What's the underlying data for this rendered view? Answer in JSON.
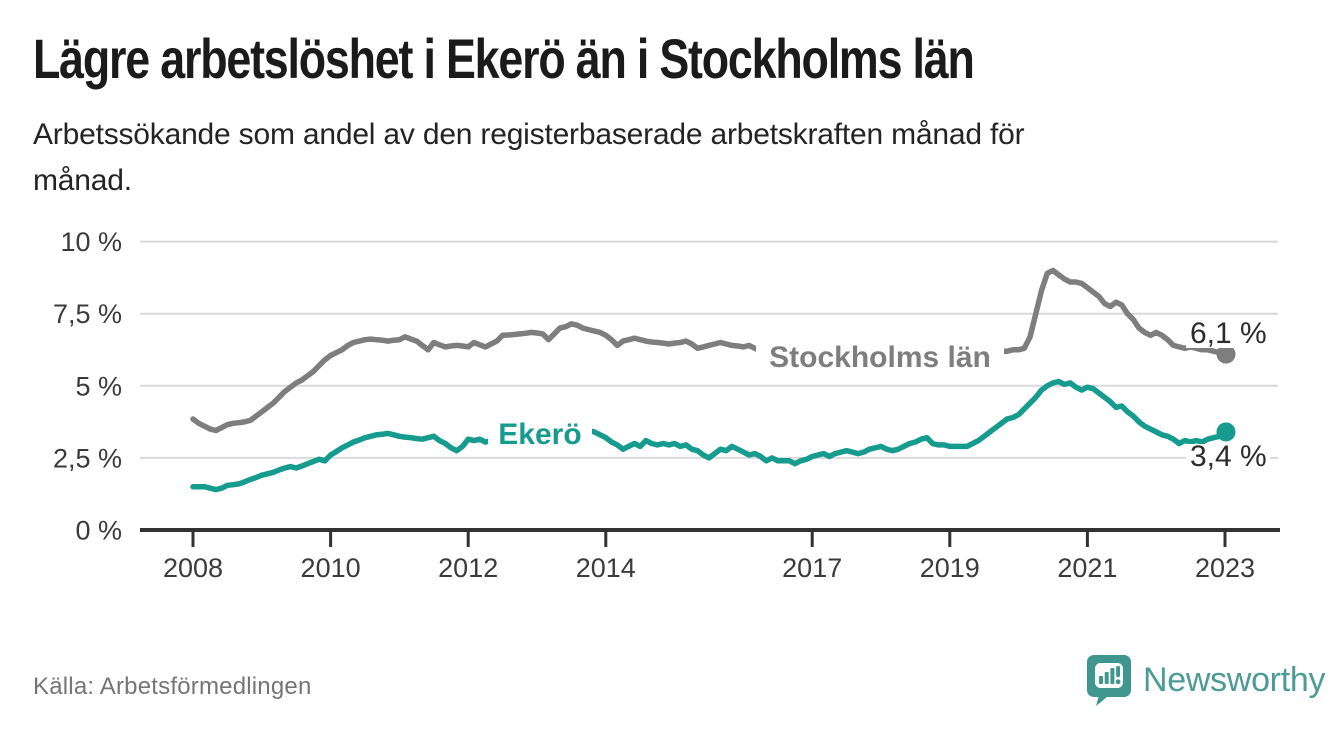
{
  "header": {
    "title": "Lägre arbetslöshet i Ekerö än i Stockholms län",
    "subtitle": "Arbetssökande som andel av den registerbaserade arbetskraften månad för\nmånad."
  },
  "chart_data": {
    "type": "line",
    "title": "Lägre arbetslöshet i Ekerö än i Stockholms län",
    "x_axis": {
      "unit": "time (monthly)",
      "start_year": 2008,
      "step_months": 1,
      "tick_years": [
        2008,
        2010,
        2012,
        2014,
        2017,
        2019,
        2021,
        2023
      ],
      "tick_labels": [
        "2008",
        "2010",
        "2012",
        "2014",
        "2017",
        "2019",
        "2021",
        "2023"
      ]
    },
    "y_axis": {
      "ylim": [
        0,
        10
      ],
      "ticks": [
        0,
        2.5,
        5,
        7.5,
        10
      ],
      "tick_labels": [
        "0 %",
        "2,5 %",
        "5 %",
        "7,5 %",
        "10 %"
      ]
    },
    "grid": "horizontal",
    "legend_position": "inline-on-line",
    "series": [
      {
        "name": "Stockholms län",
        "color": "#7E7E7E",
        "end_label": "6,1 %",
        "last_value": 6.1,
        "values": [
          3.85,
          3.7,
          3.6,
          3.5,
          3.45,
          3.55,
          3.65,
          3.7,
          3.72,
          3.75,
          3.8,
          3.95,
          4.1,
          4.25,
          4.4,
          4.6,
          4.8,
          4.95,
          5.1,
          5.2,
          5.35,
          5.5,
          5.7,
          5.9,
          6.05,
          6.15,
          6.25,
          6.4,
          6.5,
          6.55,
          6.6,
          6.62,
          6.6,
          6.58,
          6.55,
          6.58,
          6.6,
          6.7,
          6.62,
          6.55,
          6.4,
          6.25,
          6.5,
          6.42,
          6.35,
          6.38,
          6.4,
          6.38,
          6.35,
          6.5,
          6.42,
          6.35,
          6.45,
          6.55,
          6.75,
          6.76,
          6.78,
          6.8,
          6.82,
          6.85,
          6.83,
          6.8,
          6.6,
          6.8,
          7.0,
          7.05,
          7.15,
          7.1,
          7.0,
          6.95,
          6.9,
          6.85,
          6.75,
          6.6,
          6.4,
          6.55,
          6.6,
          6.65,
          6.6,
          6.55,
          6.52,
          6.5,
          6.48,
          6.45,
          6.48,
          6.5,
          6.55,
          6.45,
          6.3,
          6.35,
          6.4,
          6.45,
          6.5,
          6.45,
          6.4,
          6.38,
          6.35,
          6.4,
          6.3,
          6.2,
          6.1,
          6.15,
          6.1,
          6.05,
          6.1,
          6.05,
          6.0,
          6.05,
          6.1,
          6.15,
          6.1,
          6.05,
          6.0,
          6.05,
          6.1,
          6.1,
          6.05,
          6.0,
          6.0,
          6.05,
          6.05,
          6.0,
          5.95,
          5.95,
          6.0,
          6.05,
          6.1,
          6.1,
          6.05,
          6.0,
          6.0,
          6.05,
          6.05,
          6.1,
          6.1,
          6.1,
          6.15,
          6.15,
          6.2,
          6.2,
          6.2,
          6.2,
          6.2,
          6.25,
          6.25,
          6.3,
          6.7,
          7.5,
          8.3,
          8.9,
          9.0,
          8.85,
          8.7,
          8.6,
          8.6,
          8.55,
          8.4,
          8.25,
          8.1,
          7.85,
          7.75,
          7.9,
          7.8,
          7.5,
          7.3,
          7.0,
          6.85,
          6.75,
          6.85,
          6.75,
          6.6,
          6.4,
          6.35,
          6.3,
          6.35,
          6.3,
          6.25,
          6.25,
          6.2,
          6.15,
          6.1
        ]
      },
      {
        "name": "Ekerö",
        "color": "#169C8F",
        "end_label": "3,4 %",
        "last_value": 3.4,
        "values": [
          1.5,
          1.5,
          1.5,
          1.45,
          1.4,
          1.45,
          1.55,
          1.57,
          1.6,
          1.67,
          1.75,
          1.82,
          1.9,
          1.95,
          2.0,
          2.08,
          2.15,
          2.2,
          2.15,
          2.22,
          2.3,
          2.38,
          2.45,
          2.4,
          2.6,
          2.72,
          2.85,
          2.95,
          3.05,
          3.12,
          3.2,
          3.25,
          3.3,
          3.32,
          3.35,
          3.3,
          3.25,
          3.22,
          3.2,
          3.17,
          3.15,
          3.2,
          3.25,
          3.1,
          3.0,
          2.85,
          2.75,
          2.9,
          3.15,
          3.1,
          3.15,
          3.05,
          3.1,
          3.15,
          3.2,
          3.25,
          3.3,
          3.3,
          3.35,
          3.35,
          3.4,
          3.45,
          3.4,
          3.45,
          3.5,
          3.5,
          3.45,
          3.5,
          3.47,
          3.45,
          3.4,
          3.3,
          3.2,
          3.05,
          2.95,
          2.8,
          2.9,
          3.0,
          2.9,
          3.1,
          3.0,
          2.95,
          3.0,
          2.95,
          3.0,
          2.9,
          2.95,
          2.8,
          2.75,
          2.6,
          2.5,
          2.65,
          2.8,
          2.75,
          2.9,
          2.8,
          2.7,
          2.6,
          2.65,
          2.55,
          2.4,
          2.5,
          2.4,
          2.4,
          2.4,
          2.3,
          2.4,
          2.45,
          2.55,
          2.6,
          2.65,
          2.55,
          2.65,
          2.7,
          2.75,
          2.7,
          2.65,
          2.7,
          2.8,
          2.85,
          2.9,
          2.8,
          2.75,
          2.8,
          2.9,
          3.0,
          3.05,
          3.15,
          3.2,
          3.0,
          2.95,
          2.95,
          2.9,
          2.9,
          2.9,
          2.9,
          3.0,
          3.1,
          3.25,
          3.4,
          3.55,
          3.7,
          3.85,
          3.9,
          4.0,
          4.2,
          4.4,
          4.6,
          4.85,
          5.0,
          5.1,
          5.15,
          5.05,
          5.1,
          4.95,
          4.85,
          4.95,
          4.9,
          4.75,
          4.6,
          4.45,
          4.25,
          4.3,
          4.1,
          3.95,
          3.75,
          3.6,
          3.5,
          3.4,
          3.3,
          3.25,
          3.15,
          3.0,
          3.1,
          3.05,
          3.1,
          3.05,
          3.15,
          3.2,
          3.25,
          3.4
        ]
      }
    ]
  },
  "footer": {
    "source": "Källa: Arbetsförmedlingen",
    "brand": "Newsworthy"
  },
  "colors": {
    "accent_teal": "#169C8F",
    "line_gray": "#7E7E7E",
    "axis_text": "#3B3B3B",
    "value_label_text": "#2D2D2D",
    "grid": "#DADADA",
    "baseline": "#323232",
    "brand_text_teal": "#4C9B94",
    "logo_mark_teal": "#3F968E"
  }
}
